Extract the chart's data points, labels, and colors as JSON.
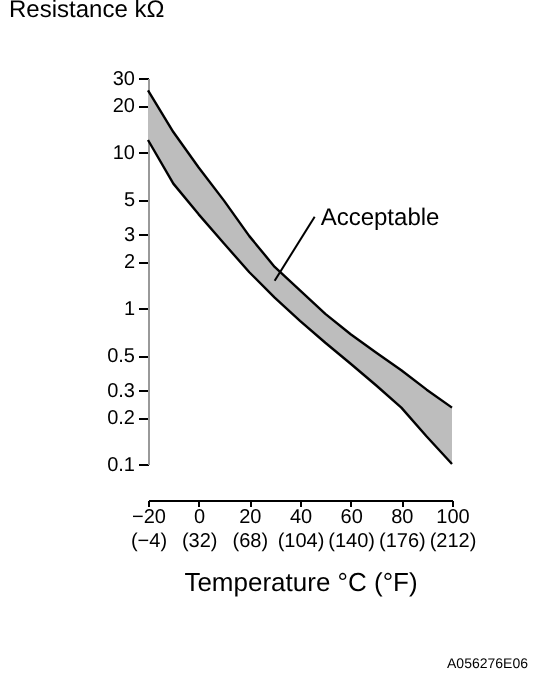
{
  "chart_data": {
    "type": "line",
    "ylabel": "Resistance kΩ",
    "xlabel": "Temperature °C (°F)",
    "x": [
      -20,
      -10,
      0,
      10,
      20,
      30,
      40,
      50,
      60,
      70,
      80,
      90,
      100
    ],
    "series": [
      {
        "type": "area",
        "color": "#bdbdbd",
        "values": [
          25,
          13.5,
          8,
          4.9,
          2.9,
          1.84,
          1.3,
          0.92,
          0.68,
          0.52,
          0.4,
          0.3,
          0.23
        ]
      },
      {
        "type": "line",
        "color": "#000000",
        "values": [
          12,
          6.3,
          4,
          2.6,
          1.7,
          1.17,
          0.83,
          0.6,
          0.44,
          0.32,
          0.23,
          0.15,
          0.1
        ]
      }
    ],
    "log": "y",
    "grid": false,
    "xlim": [
      -20,
      100
    ],
    "xticks": [
      {
        "value": -20,
        "label": "−20"
      },
      0,
      20,
      40,
      60,
      80,
      100
    ],
    "x2lim": [
      -4,
      212
    ],
    "x2ticks": [
      {
        "value": -4,
        "label": "(−4)"
      },
      {
        "value": 32,
        "label": "(32)"
      },
      {
        "value": 68,
        "label": "(68)"
      },
      {
        "value": 104,
        "label": "(104)"
      },
      {
        "value": 140,
        "label": "(140)"
      },
      {
        "value": 176,
        "label": "(176)"
      },
      {
        "value": 212,
        "label": "(212)"
      }
    ],
    "ylim": [
      0.1,
      30
    ],
    "yticks": [
      0.1,
      0.2,
      0.3,
      0.5,
      1,
      2,
      3,
      5,
      10,
      20,
      30
    ],
    "annotations": [
      {
        "text": "Acceptable",
        "x": 30,
        "y": 1.5
      },
      "A056276E06"
    ]
  }
}
